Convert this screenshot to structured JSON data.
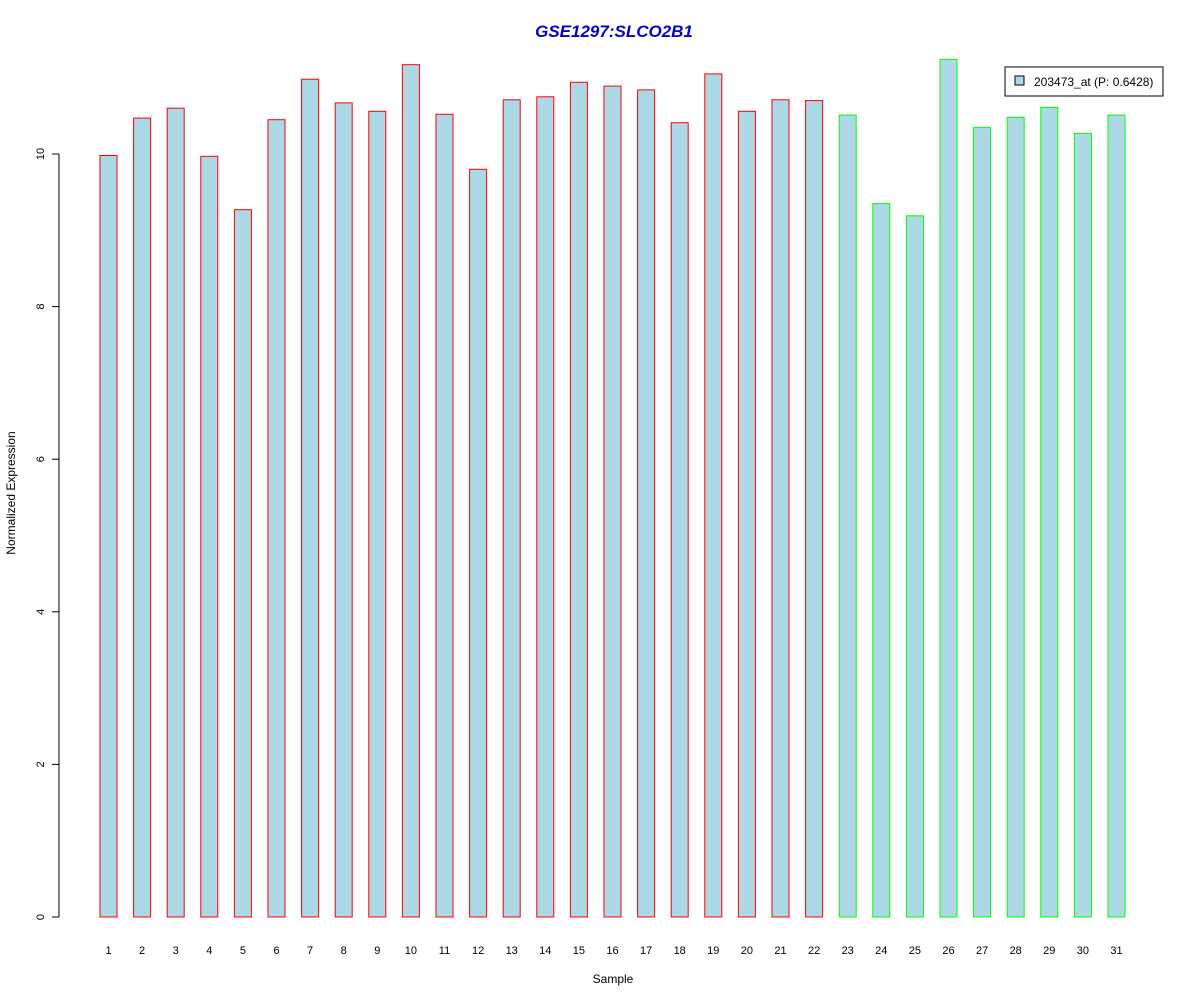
{
  "chart_data": {
    "type": "bar",
    "title": "GSE1297:SLCO2B1",
    "title_color": "#0000cc",
    "xlabel": "Sample",
    "ylabel": "Normalized Expression",
    "ylim": [
      0,
      11.3
    ],
    "yticks": [
      0,
      2,
      4,
      6,
      8,
      10
    ],
    "categories": [
      "1",
      "2",
      "3",
      "4",
      "5",
      "6",
      "7",
      "8",
      "9",
      "10",
      "11",
      "12",
      "13",
      "14",
      "15",
      "16",
      "17",
      "18",
      "19",
      "20",
      "21",
      "22",
      "23",
      "24",
      "25",
      "26",
      "27",
      "28",
      "29",
      "30",
      "31"
    ],
    "values": [
      9.98,
      10.47,
      10.6,
      9.97,
      9.27,
      10.45,
      10.98,
      10.67,
      10.56,
      11.17,
      10.52,
      9.8,
      10.71,
      10.75,
      10.94,
      10.89,
      10.84,
      10.41,
      11.05,
      10.56,
      10.71,
      10.7,
      10.51,
      9.35,
      9.19,
      11.24,
      10.35,
      10.48,
      10.61,
      10.27,
      10.51
    ],
    "fill_color": "#add8e6",
    "group_border_colors": [
      "#ff0000",
      "#ff0000",
      "#ff0000",
      "#ff0000",
      "#ff0000",
      "#ff0000",
      "#ff0000",
      "#ff0000",
      "#ff0000",
      "#ff0000",
      "#ff0000",
      "#ff0000",
      "#ff0000",
      "#ff0000",
      "#ff0000",
      "#ff0000",
      "#ff0000",
      "#ff0000",
      "#ff0000",
      "#ff0000",
      "#ff0000",
      "#ff0000",
      "#00ff00",
      "#00ff00",
      "#00ff00",
      "#00ff00",
      "#00ff00",
      "#00ff00",
      "#00ff00",
      "#00ff00",
      "#00ff00"
    ],
    "legend": {
      "placement": "top-right",
      "label": "203473_at (P: 0.6428)",
      "swatch_color": "#add8e6"
    },
    "grid": false
  }
}
